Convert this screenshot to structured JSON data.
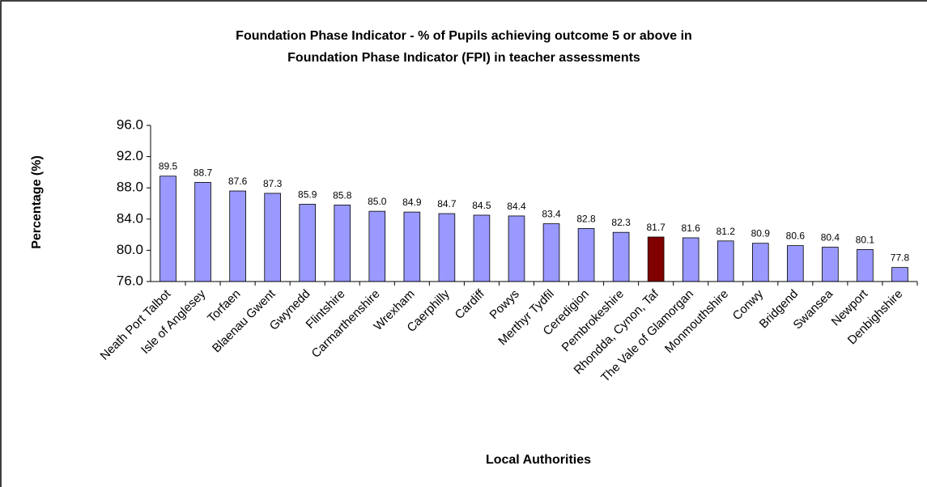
{
  "chart_data": {
    "type": "bar",
    "title": [
      "Foundation Phase Indicator - % of Pupils achieving outcome 5 or above in",
      "Foundation Phase Indicator (FPI) in teacher assessments"
    ],
    "x_label": "Local Authorities",
    "y_label": "Percentage (%)",
    "categories": [
      "Neath Port Talbot",
      "Isle of Anglesey",
      "Torfaen",
      "Blaenau Gwent",
      "Gwynedd",
      "Flintshire",
      "Carmarthenshire",
      "Wrexham",
      "Caerphilly",
      "Cardiff",
      "Powys",
      "Merthyr Tydfil",
      "Ceredigion",
      "Pembrokeshire",
      "Rhondda, Cynon, Taf",
      "The Vale of Glamorgan",
      "Monmouthshire",
      "Conwy",
      "Bridgend",
      "Swansea",
      "Newport",
      "Denbighshire"
    ],
    "values": [
      89.5,
      88.7,
      87.6,
      87.3,
      85.9,
      85.8,
      85.0,
      84.9,
      84.7,
      84.5,
      84.4,
      83.4,
      82.8,
      82.3,
      81.7,
      81.6,
      81.2,
      80.9,
      80.6,
      80.4,
      80.1,
      77.8
    ],
    "value_labels": [
      "89.5",
      "88.7",
      "87.6",
      "87.3",
      "85.9",
      "85.8",
      "85.0",
      "84.9",
      "84.7",
      "84.5",
      "84.4",
      "83.4",
      "82.8",
      "82.3",
      "81.7",
      "81.6",
      "81.2",
      "80.9",
      "80.6",
      "80.4",
      "80.1",
      "77.8"
    ],
    "colors": [
      "#9999ff",
      "#9999ff",
      "#9999ff",
      "#9999ff",
      "#9999ff",
      "#9999ff",
      "#9999ff",
      "#9999ff",
      "#9999ff",
      "#9999ff",
      "#9999ff",
      "#9999ff",
      "#9999ff",
      "#9999ff",
      "#800000",
      "#9999ff",
      "#9999ff",
      "#9999ff",
      "#9999ff",
      "#9999ff",
      "#9999ff",
      "#9999ff"
    ],
    "ylim": [
      76,
      96
    ],
    "yticks": [
      {
        "value": 76,
        "label": "76.0"
      },
      {
        "value": 80,
        "label": "80.0"
      },
      {
        "value": 84,
        "label": "84.0"
      },
      {
        "value": 88,
        "label": "88.0"
      },
      {
        "value": 92,
        "label": "92.0"
      },
      {
        "value": 96,
        "label": "96.0"
      }
    ],
    "grid": false
  }
}
